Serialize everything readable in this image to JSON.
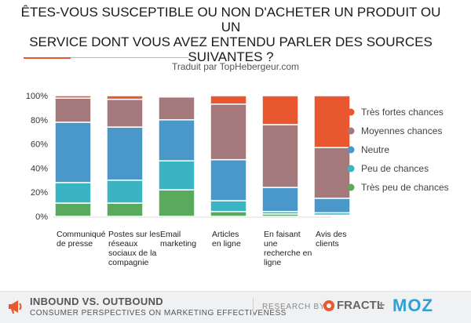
{
  "title_lines": [
    "ÊTES-VOUS SUSCEPTIBLE OU NON D'ACHETER UN PRODUIT OU UN",
    "SERVICE DONT VOUS AVEZ ENTENDU PARLER DES SOURCES",
    "SUIVANTES ?"
  ],
  "subtitle": "Traduit par TopHebergeur.com",
  "footer": {
    "title": "INBOUND VS. OUTBOUND",
    "subtitle": "CONSUMER PERSPECTIVES ON MARKETING EFFECTIVENESS",
    "research_by": "RESEARCH BY >",
    "fractl": "FRACTL",
    "plus": "+",
    "moz": "MOZ"
  },
  "colors": {
    "accent": "#e8572e",
    "moz": "#2ea0d6"
  },
  "chart_data": {
    "type": "bar",
    "stacked": true,
    "percent": true,
    "categories": [
      "Communiqué de presse",
      "Postes sur les réseaux sociaux de la compagnie",
      "Email marketing",
      "Articles en ligne",
      "En faisant une recherche en ligne",
      "Avis des clients"
    ],
    "category_lines": [
      [
        "Communiqué",
        "de presse"
      ],
      [
        "Postes sur les",
        "réseaux",
        "sociaux de la",
        "compagnie"
      ],
      [
        "Email",
        "marketing"
      ],
      [
        "Articles",
        "en ligne"
      ],
      [
        "En faisant",
        "une",
        "recherche en",
        "ligne"
      ],
      [
        "Avis des",
        "clients"
      ]
    ],
    "series": [
      {
        "name": "Très peu de chances",
        "color": "#5aaa5e",
        "values": [
          11,
          11,
          22,
          4,
          2,
          1
        ]
      },
      {
        "name": "Peu de chances",
        "color": "#3ab3c3",
        "values": [
          17,
          19,
          24,
          9,
          2,
          2
        ]
      },
      {
        "name": "Neutre",
        "color": "#4a97c9",
        "values": [
          50,
          44,
          34,
          34,
          20,
          12
        ]
      },
      {
        "name": "Moyennes chances",
        "color": "#a3797c",
        "values": [
          20,
          23,
          19,
          46,
          52,
          42
        ]
      },
      {
        "name": "Très fortes chances",
        "color": "#e8572e",
        "values": [
          2,
          3,
          1,
          7,
          24,
          43
        ]
      }
    ],
    "legend_order": [
      "Très fortes chances",
      "Moyennes chances",
      "Neutre",
      "Peu de chances",
      "Très peu de chances"
    ],
    "ylim": [
      0,
      100
    ],
    "yticks": [
      "0%",
      "20%",
      "40%",
      "60%",
      "80%",
      "100%"
    ],
    "ytick_values": [
      0,
      20,
      40,
      60,
      80,
      100
    ],
    "grid": false,
    "legend_position": "right"
  }
}
